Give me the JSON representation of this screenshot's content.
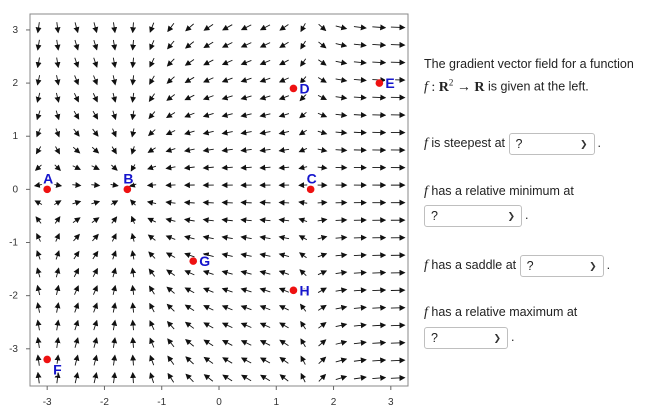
{
  "plot": {
    "x_ticks": [
      "-3",
      "-2",
      "-1",
      "0",
      "1",
      "2",
      "3"
    ],
    "y_ticks": [
      "3",
      "2",
      "1",
      "0",
      "-1",
      "-2",
      "-3"
    ],
    "points": [
      {
        "label": "A",
        "x": -3.0,
        "y": 0.0
      },
      {
        "label": "B",
        "x": -1.6,
        "y": 0.0
      },
      {
        "label": "C",
        "x": 1.6,
        "y": 0.0
      },
      {
        "label": "D",
        "x": 1.3,
        "y": 1.9
      },
      {
        "label": "E",
        "x": 2.8,
        "y": 2.0
      },
      {
        "label": "F",
        "x": -3.0,
        "y": -3.2
      },
      {
        "label": "G",
        "x": -0.45,
        "y": -1.35
      },
      {
        "label": "H",
        "x": 1.3,
        "y": -1.9
      }
    ],
    "colors": {
      "point": "#ee1111",
      "point_label": "#1515cc",
      "arrow": "#111111"
    }
  },
  "side": {
    "desc_1": "The gradient vector field for a function",
    "desc_math_f": "f",
    "desc_math_rest": "is given at the left.",
    "q1_prefix": "is steepest at",
    "q2_text": "has a relative minimum at",
    "q3_prefix": "has a saddle at",
    "q4_text": "has a relative maximum at",
    "f": "f",
    "dropdown_value": "?",
    "period": "."
  }
}
